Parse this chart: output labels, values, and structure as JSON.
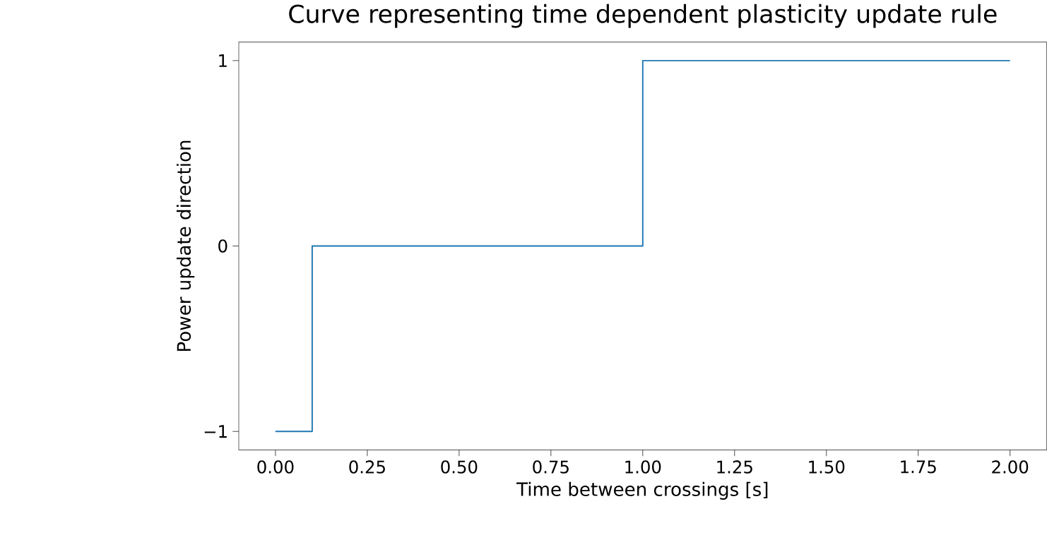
{
  "chart_data": {
    "type": "step",
    "title": "Curve representing time dependent plasticity update rule",
    "xlabel": "Time between crossings [s]",
    "ylabel": "Power update direction",
    "x": [
      0,
      0.1,
      1.0,
      2.0
    ],
    "values": [
      -1,
      0,
      1,
      1
    ],
    "color": "#1f77b4",
    "xlim": [
      -0.1,
      2.1
    ],
    "ylim": [
      -1.1,
      1.1
    ],
    "xticks": [
      {
        "value": 0,
        "label": "0.00"
      },
      {
        "value": 0.25,
        "label": "0.25"
      },
      {
        "value": 0.5,
        "label": "0.50"
      },
      {
        "value": 0.75,
        "label": "0.75"
      },
      {
        "value": 1,
        "label": "1.00"
      },
      {
        "value": 1.25,
        "label": "1.25"
      },
      {
        "value": 1.5,
        "label": "1.50"
      },
      {
        "value": 1.75,
        "label": "1.75"
      },
      {
        "value": 2,
        "label": "2.00"
      }
    ],
    "yticks": [
      {
        "value": -1,
        "label": "−1"
      },
      0,
      1
    ]
  }
}
